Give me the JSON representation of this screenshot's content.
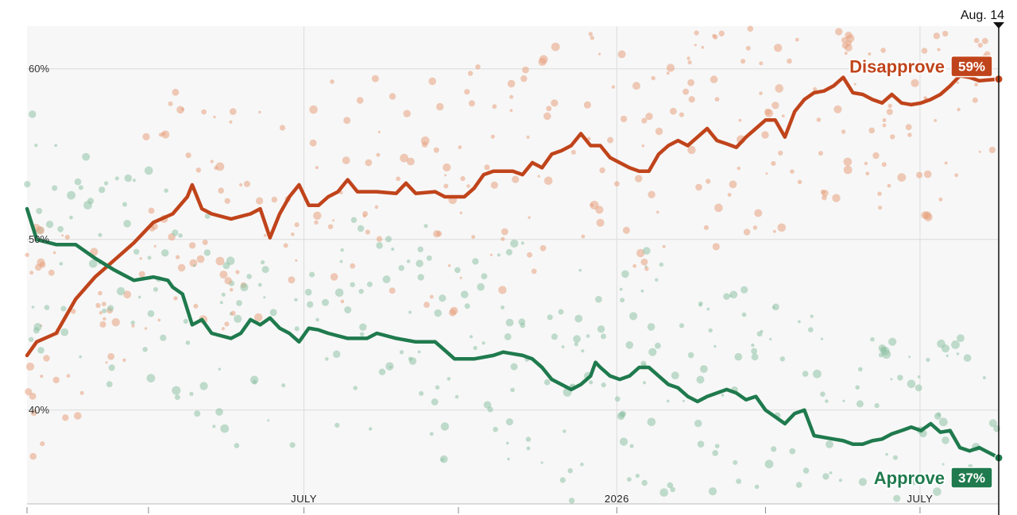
{
  "chart_data": {
    "type": "line",
    "title": "",
    "xlabel": "",
    "ylabel": "",
    "ylim": [
      34.5,
      62.5
    ],
    "y_ticks": [
      {
        "value": 60,
        "label": "60%"
      },
      {
        "value": 50,
        "label": "50%"
      },
      {
        "value": 40,
        "label": "40%"
      }
    ],
    "x_tick_labels": [
      {
        "label": "JULY",
        "t": 0.285
      },
      {
        "label": "2026",
        "t": 0.607
      },
      {
        "label": "JULY",
        "t": 0.919
      }
    ],
    "current_date_label": "Aug. 14",
    "grid": true,
    "colors": {
      "disapprove": "#c0441b",
      "approve": "#1f7a4d",
      "disapprove_dot": "#e8a37f",
      "approve_dot": "#8fc2a6",
      "plot_bg": "#f7f7f7",
      "grid": "#dcdcdc"
    },
    "series": [
      {
        "name": "Disapprove",
        "end_label": "59%",
        "points": [
          [
            0.0,
            43.2
          ],
          [
            0.01,
            44.0
          ],
          [
            0.03,
            44.5
          ],
          [
            0.05,
            46.5
          ],
          [
            0.07,
            47.8
          ],
          [
            0.09,
            48.8
          ],
          [
            0.11,
            49.8
          ],
          [
            0.13,
            51.0
          ],
          [
            0.15,
            51.5
          ],
          [
            0.165,
            52.5
          ],
          [
            0.17,
            53.2
          ],
          [
            0.18,
            51.8
          ],
          [
            0.19,
            51.5
          ],
          [
            0.21,
            51.2
          ],
          [
            0.23,
            51.5
          ],
          [
            0.24,
            51.8
          ],
          [
            0.25,
            50.1
          ],
          [
            0.26,
            51.5
          ],
          [
            0.27,
            52.5
          ],
          [
            0.28,
            53.2
          ],
          [
            0.29,
            52.0
          ],
          [
            0.3,
            52.0
          ],
          [
            0.31,
            52.5
          ],
          [
            0.32,
            52.8
          ],
          [
            0.33,
            53.5
          ],
          [
            0.34,
            52.8
          ],
          [
            0.36,
            52.8
          ],
          [
            0.38,
            52.7
          ],
          [
            0.39,
            53.3
          ],
          [
            0.4,
            52.7
          ],
          [
            0.42,
            52.8
          ],
          [
            0.43,
            52.5
          ],
          [
            0.45,
            52.5
          ],
          [
            0.46,
            53.0
          ],
          [
            0.47,
            53.8
          ],
          [
            0.48,
            54.0
          ],
          [
            0.5,
            54.0
          ],
          [
            0.51,
            53.8
          ],
          [
            0.52,
            54.5
          ],
          [
            0.53,
            54.2
          ],
          [
            0.54,
            55.0
          ],
          [
            0.55,
            55.2
          ],
          [
            0.56,
            55.5
          ],
          [
            0.57,
            56.2
          ],
          [
            0.58,
            55.5
          ],
          [
            0.59,
            55.5
          ],
          [
            0.6,
            54.8
          ],
          [
            0.61,
            54.5
          ],
          [
            0.62,
            54.2
          ],
          [
            0.63,
            54.0
          ],
          [
            0.64,
            54.0
          ],
          [
            0.65,
            55.0
          ],
          [
            0.66,
            55.5
          ],
          [
            0.67,
            55.8
          ],
          [
            0.68,
            55.5
          ],
          [
            0.69,
            56.0
          ],
          [
            0.7,
            56.5
          ],
          [
            0.71,
            55.8
          ],
          [
            0.72,
            55.6
          ],
          [
            0.73,
            55.4
          ],
          [
            0.74,
            56.0
          ],
          [
            0.75,
            56.5
          ],
          [
            0.76,
            57.0
          ],
          [
            0.77,
            57.0
          ],
          [
            0.78,
            56.0
          ],
          [
            0.79,
            57.5
          ],
          [
            0.8,
            58.2
          ],
          [
            0.81,
            58.6
          ],
          [
            0.82,
            58.7
          ],
          [
            0.83,
            59.0
          ],
          [
            0.84,
            59.5
          ],
          [
            0.85,
            58.6
          ],
          [
            0.86,
            58.5
          ],
          [
            0.87,
            58.2
          ],
          [
            0.88,
            58.0
          ],
          [
            0.89,
            58.5
          ],
          [
            0.9,
            58.0
          ],
          [
            0.91,
            57.9
          ],
          [
            0.92,
            58.0
          ],
          [
            0.93,
            58.2
          ],
          [
            0.94,
            58.5
          ],
          [
            0.95,
            59.0
          ],
          [
            0.96,
            59.6
          ],
          [
            0.97,
            59.5
          ],
          [
            0.98,
            59.3
          ],
          [
            1.0,
            59.4
          ]
        ]
      },
      {
        "name": "Approve",
        "end_label": "37%",
        "points": [
          [
            0.0,
            51.8
          ],
          [
            0.01,
            50.0
          ],
          [
            0.03,
            49.7
          ],
          [
            0.05,
            49.7
          ],
          [
            0.07,
            48.9
          ],
          [
            0.09,
            48.2
          ],
          [
            0.11,
            47.6
          ],
          [
            0.13,
            47.8
          ],
          [
            0.145,
            47.6
          ],
          [
            0.15,
            47.2
          ],
          [
            0.16,
            46.8
          ],
          [
            0.17,
            45.0
          ],
          [
            0.18,
            45.3
          ],
          [
            0.19,
            44.5
          ],
          [
            0.21,
            44.2
          ],
          [
            0.22,
            44.5
          ],
          [
            0.23,
            45.3
          ],
          [
            0.24,
            45.0
          ],
          [
            0.25,
            45.4
          ],
          [
            0.26,
            44.8
          ],
          [
            0.27,
            44.5
          ],
          [
            0.28,
            44.0
          ],
          [
            0.29,
            44.8
          ],
          [
            0.3,
            44.7
          ],
          [
            0.31,
            44.5
          ],
          [
            0.33,
            44.2
          ],
          [
            0.35,
            44.2
          ],
          [
            0.36,
            44.5
          ],
          [
            0.38,
            44.2
          ],
          [
            0.4,
            44.0
          ],
          [
            0.42,
            44.0
          ],
          [
            0.43,
            43.5
          ],
          [
            0.44,
            43.0
          ],
          [
            0.46,
            43.0
          ],
          [
            0.48,
            43.2
          ],
          [
            0.49,
            43.4
          ],
          [
            0.5,
            43.3
          ],
          [
            0.51,
            43.2
          ],
          [
            0.52,
            43.0
          ],
          [
            0.53,
            42.5
          ],
          [
            0.54,
            41.8
          ],
          [
            0.55,
            41.5
          ],
          [
            0.56,
            41.2
          ],
          [
            0.57,
            41.5
          ],
          [
            0.58,
            42.0
          ],
          [
            0.585,
            42.8
          ],
          [
            0.59,
            42.5
          ],
          [
            0.6,
            42.0
          ],
          [
            0.61,
            41.8
          ],
          [
            0.62,
            42.0
          ],
          [
            0.63,
            42.5
          ],
          [
            0.64,
            42.5
          ],
          [
            0.65,
            42.0
          ],
          [
            0.66,
            41.5
          ],
          [
            0.67,
            41.3
          ],
          [
            0.68,
            40.8
          ],
          [
            0.69,
            40.5
          ],
          [
            0.7,
            40.8
          ],
          [
            0.71,
            41.0
          ],
          [
            0.72,
            41.2
          ],
          [
            0.73,
            41.0
          ],
          [
            0.74,
            40.6
          ],
          [
            0.75,
            40.8
          ],
          [
            0.76,
            40.0
          ],
          [
            0.77,
            39.6
          ],
          [
            0.78,
            39.2
          ],
          [
            0.79,
            39.8
          ],
          [
            0.8,
            40.0
          ],
          [
            0.81,
            38.5
          ],
          [
            0.82,
            38.4
          ],
          [
            0.83,
            38.3
          ],
          [
            0.84,
            38.2
          ],
          [
            0.85,
            38.0
          ],
          [
            0.86,
            38.0
          ],
          [
            0.87,
            38.2
          ],
          [
            0.88,
            38.3
          ],
          [
            0.89,
            38.6
          ],
          [
            0.9,
            38.8
          ],
          [
            0.91,
            39.0
          ],
          [
            0.92,
            38.8
          ],
          [
            0.93,
            39.2
          ],
          [
            0.94,
            38.7
          ],
          [
            0.95,
            38.8
          ],
          [
            0.96,
            37.8
          ],
          [
            0.97,
            37.6
          ],
          [
            0.98,
            37.8
          ],
          [
            1.0,
            37.2
          ]
        ]
      }
    ]
  }
}
